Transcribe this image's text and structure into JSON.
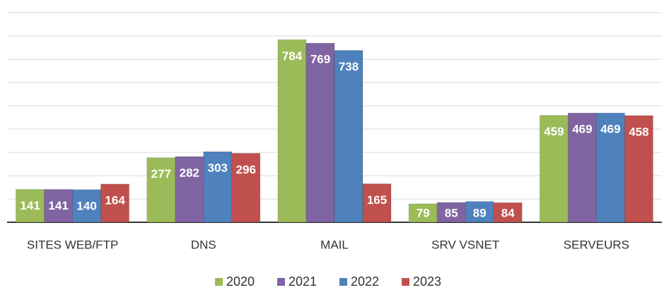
{
  "chart_data": {
    "type": "bar",
    "categories": [
      "SITES WEB/FTP",
      "DNS",
      "MAIL",
      "SRV VSNET",
      "SERVEURS"
    ],
    "series": [
      {
        "name": "2020",
        "color": "#9bbb59",
        "values": [
          141,
          277,
          784,
          79,
          459
        ]
      },
      {
        "name": "2021",
        "color": "#8064a2",
        "values": [
          141,
          282,
          769,
          85,
          469
        ]
      },
      {
        "name": "2022",
        "color": "#4f81bd",
        "values": [
          140,
          303,
          738,
          89,
          469
        ]
      },
      {
        "name": "2023",
        "color": "#c0504d",
        "values": [
          164,
          296,
          165,
          84,
          458
        ]
      }
    ],
    "ylim": [
      0,
      900
    ],
    "yticks": [
      0,
      100,
      200,
      300,
      400,
      500,
      600,
      700,
      800,
      900
    ],
    "grid": true,
    "legend": "bottom"
  }
}
